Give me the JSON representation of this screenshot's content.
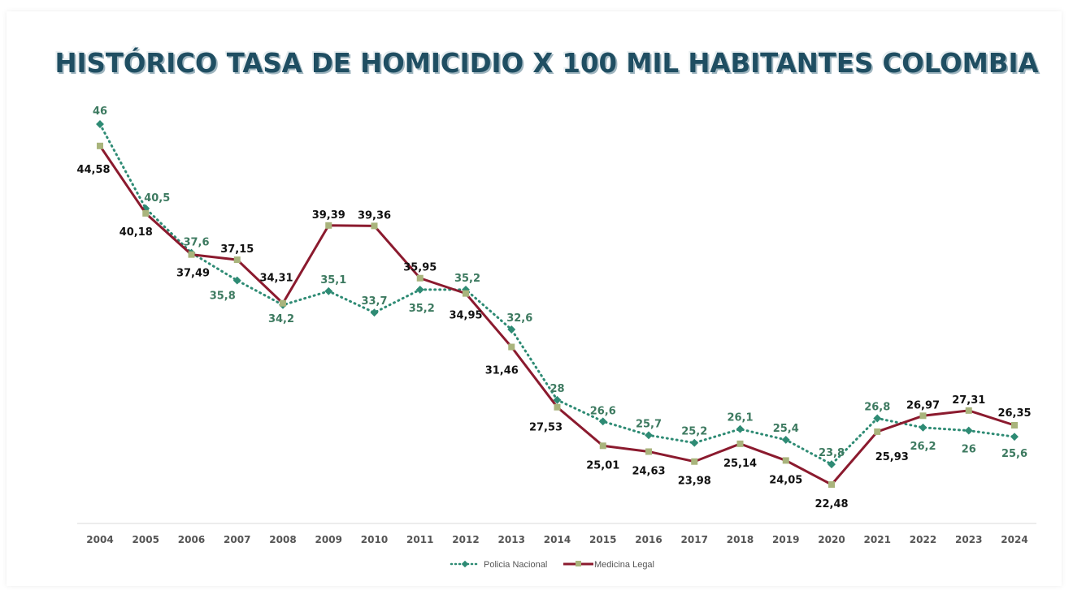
{
  "chart_data": {
    "type": "line",
    "title": "HISTÓRICO TASA DE HOMICIDIO X 100 MIL HABITANTES COLOMBIA",
    "xlabel": "",
    "ylabel": "",
    "categories": [
      "2004",
      "2005",
      "2006",
      "2007",
      "2008",
      "2009",
      "2010",
      "2011",
      "2012",
      "2013",
      "2014",
      "2015",
      "2016",
      "2017",
      "2018",
      "2019",
      "2020",
      "2021",
      "2022",
      "2023",
      "2024"
    ],
    "ylim": [
      20,
      48
    ],
    "grid": false,
    "legend_position": "bottom",
    "series": [
      {
        "name": "Policia Nacional",
        "style": "dotted",
        "color": "#2e8b74",
        "label_color": "#3d7a60",
        "values": [
          46,
          40.5,
          37.6,
          35.8,
          34.2,
          35.1,
          33.7,
          35.2,
          35.2,
          32.6,
          28,
          26.6,
          25.7,
          25.2,
          26.1,
          25.4,
          23.8,
          26.8,
          26.2,
          26,
          25.6
        ],
        "labels": [
          "46",
          "40,5",
          "37,6",
          "35,8",
          "34,2",
          "35,1",
          "33,7",
          "35,2",
          "35,2",
          "32,6",
          "28",
          "26,6",
          "25,7",
          "25,2",
          "26,1",
          "25,4",
          "23,8",
          "26,8",
          "26,2",
          "26",
          "25,6"
        ]
      },
      {
        "name": "Medicina Legal",
        "style": "solid",
        "color": "#8b1a2e",
        "marker_color": "#a9b47c",
        "label_color": "#111111",
        "values": [
          44.58,
          40.18,
          37.49,
          37.15,
          34.31,
          39.39,
          39.36,
          35.95,
          34.95,
          31.46,
          27.53,
          25.01,
          24.63,
          23.98,
          25.14,
          24.05,
          22.48,
          25.93,
          26.97,
          27.31,
          26.35
        ],
        "labels": [
          "44,58",
          "40,18",
          "37,49",
          "37,15",
          "34,31",
          "39,39",
          "39,36",
          "35,95",
          "34,95",
          "31,46",
          "27,53",
          "25,01",
          "24,63",
          "23,98",
          "25,14",
          "24,05",
          "22,48",
          "25,93",
          "26,97",
          "27,31",
          "26,35"
        ]
      }
    ]
  }
}
